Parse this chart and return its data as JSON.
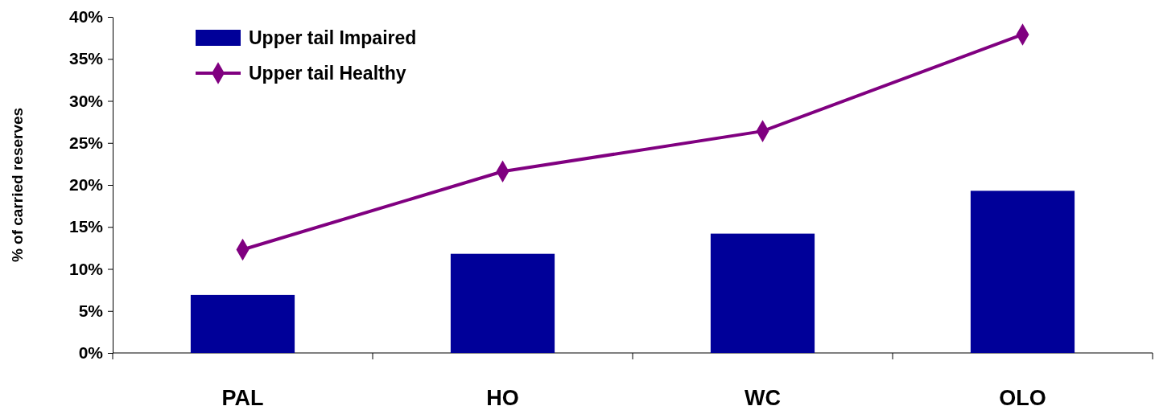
{
  "chart_data": {
    "type": "bar",
    "ylabel": "% of carried reserves",
    "categories": [
      "PAL",
      "HO",
      "WC",
      "OLO"
    ],
    "series": [
      {
        "name": "Upper tail Impaired",
        "color": "#000099",
        "values": [
          6.9,
          11.8,
          14.2,
          19.3
        ]
      },
      {
        "name": "Upper tail Healthy",
        "type": "line",
        "color": "#800080",
        "marker": "diamond",
        "values": [
          12.3,
          21.6,
          26.4,
          37.9
        ]
      }
    ],
    "ylim": [
      0,
      40
    ],
    "yticks": [
      {
        "value": 0,
        "label": "0%"
      },
      {
        "value": 5,
        "label": "5%"
      },
      {
        "value": 10,
        "label": "10%"
      },
      {
        "value": 15,
        "label": "15%"
      },
      {
        "value": 20,
        "label": "20%"
      },
      {
        "value": 25,
        "label": "25%"
      },
      {
        "value": 30,
        "label": "30%"
      },
      {
        "value": 35,
        "label": "35%"
      },
      {
        "value": 40,
        "label": "40%"
      }
    ],
    "grid": false,
    "legend": "top left"
  }
}
